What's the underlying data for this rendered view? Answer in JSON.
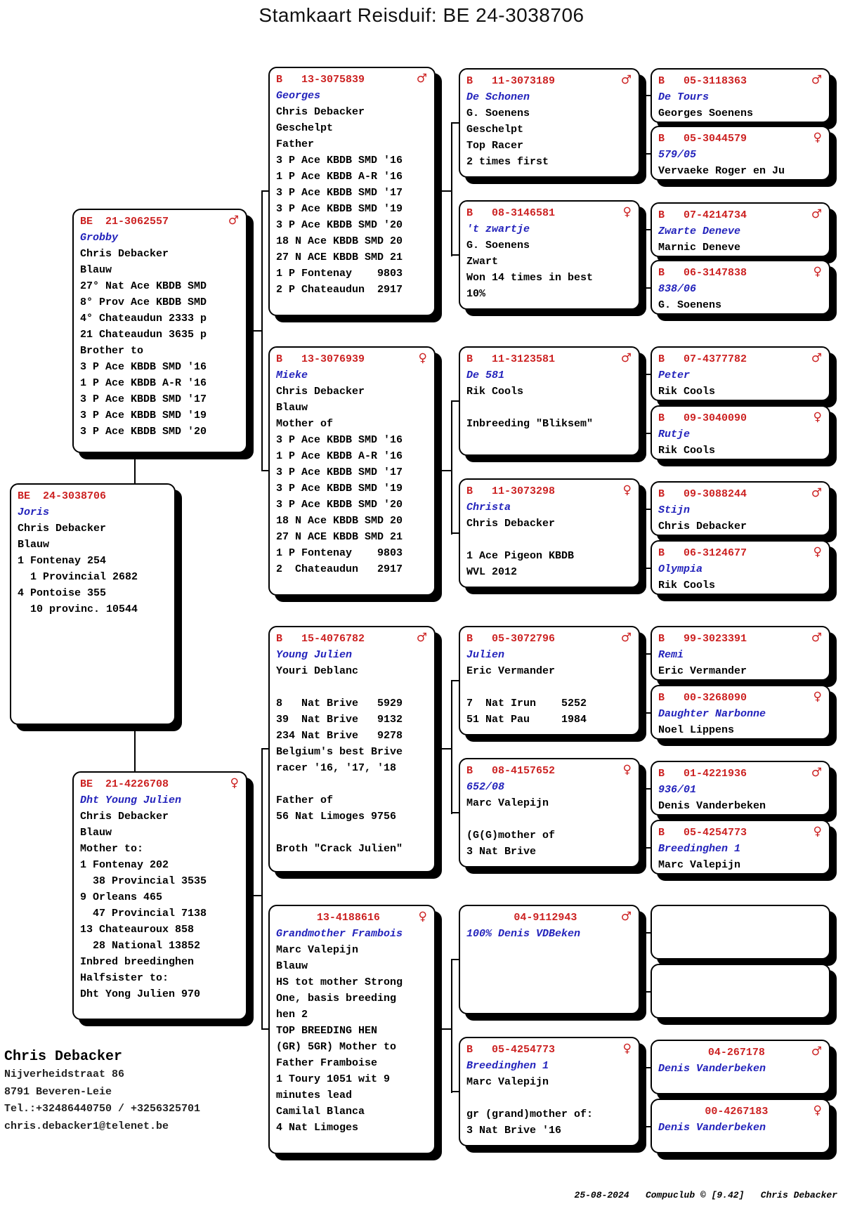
{
  "title": "Stamkaart Reisduif: BE  24-3038706",
  "colors": {
    "ring_red": "#cc2222",
    "name_blue": "#2222bb"
  },
  "owner": {
    "name": "Chris Debacker",
    "address1": "Nijverheidstraat 86",
    "address2": "8791  Beveren-Leie",
    "phone": "Tel.:+32486440750 / +3256325701",
    "email": "chris.debacker1@telenet.be"
  },
  "footer": "25-08-2024   Compuclub © [9.42]   Chris Debacker",
  "boxes": {
    "subject": {
      "ring": "BE  24-3038706",
      "sex": "",
      "name": "Joris",
      "fancier": "Chris Debacker",
      "lines": [
        "Blauw",
        "1 Fontenay 254",
        "  1 Provincial 2682",
        "4 Pontoise 355",
        "  10 provinc. 10544"
      ]
    },
    "grobby": {
      "ring": "BE  21-3062557",
      "sex": "♂",
      "name": "Grobby",
      "fancier": "Chris Debacker",
      "lines": [
        "Blauw",
        "27° Nat Ace KBDB SMD",
        "8° Prov Ace KBDB SMD",
        "4° Chateaudun 2333 p",
        "21 Chateaudun 3635 p",
        "Brother to",
        "3 P Ace KBDB SMD '16",
        "1 P Ace KBDB A-R '16",
        "3 P Ace KBDB SMD '17",
        "3 P Ace KBDB SMD '19",
        "3 P Ace KBDB SMD '20"
      ]
    },
    "dht_young_julien": {
      "ring": "BE  21-4226708",
      "sex": "♀",
      "name": "Dht Young Julien",
      "fancier": "Chris Debacker",
      "lines": [
        "Blauw",
        "Mother to:",
        "1 Fontenay 202",
        "  38 Provincial 3535",
        "9 Orleans 465",
        "  47 Provincial 7138",
        "13 Chateauroux 858",
        "  28 National 13852",
        "Inbred breedinghen",
        "Halfsister to:",
        "Dht Yong Julien 970"
      ]
    },
    "georges": {
      "ring": "B   13-3075839",
      "sex": "♂",
      "name": "Georges",
      "fancier": "Chris Debacker",
      "lines": [
        "Geschelpt",
        "Father",
        "3 P Ace KBDB SMD '16",
        "1 P Ace KBDB A-R '16",
        "3 P Ace KBDB SMD '17",
        "3 P Ace KBDB SMD '19",
        "3 P Ace KBDB SMD '20",
        "18 N Ace KBDB SMD 20",
        "27 N ACE KBDB SMD 21",
        "1 P Fontenay    9803",
        "2 P Chateaudun  2917"
      ]
    },
    "mieke": {
      "ring": "B   13-3076939",
      "sex": "♀",
      "name": "Mieke",
      "fancier": "Chris Debacker",
      "lines": [
        "Blauw",
        "Mother of",
        "3 P Ace KBDB SMD '16",
        "1 P Ace KBDB A-R '16",
        "3 P Ace KBDB SMD '17",
        "3 P Ace KBDB SMD '19",
        "3 P Ace KBDB SMD '20",
        "18 N Ace KBDB SMD 20",
        "27 N ACE KBDB SMD 21",
        "1 P Fontenay    9803",
        "2  Chateaudun   2917"
      ]
    },
    "young_julien": {
      "ring": "B   15-4076782",
      "sex": "♂",
      "name": "Young Julien",
      "fancier": "Youri Deblanc",
      "lines": [
        "",
        "8   Nat Brive   5929",
        "39  Nat Brive   9132",
        "234 Nat Brive   9278",
        "Belgium's best Brive",
        "racer '16, '17, '18",
        "",
        "Father of",
        "56 Nat Limoges 9756",
        "",
        "Broth \"Crack Julien\""
      ]
    },
    "frambois": {
      "ring": "13-4188616",
      "sex": "♀",
      "name": "Grandmother Frambois",
      "fancier": "Marc Valepijn",
      "lines": [
        "Blauw",
        "HS tot mother Strong",
        "One, basis breeding",
        "hen 2",
        "TOP BREEDING HEN",
        "(GR) 5GR) Mother to",
        "Father Framboise",
        "1 Toury 1051 wit 9",
        "minutes lead",
        "Camilal Blanca",
        "4 Nat Limoges"
      ]
    },
    "de_schonen": {
      "ring": "B   11-3073189",
      "sex": "♂",
      "name": "De Schonen",
      "fancier": "G. Soenens",
      "lines": [
        "Geschelpt",
        "Top Racer",
        "2 times first"
      ]
    },
    "zwartje": {
      "ring": "B   08-3146581",
      "sex": "♀",
      "name": "'t zwartje",
      "fancier": "G. Soenens",
      "lines": [
        "Zwart",
        "Won 14 times in best",
        "10%"
      ]
    },
    "de_581": {
      "ring": "B   11-3123581",
      "sex": "♂",
      "name": "De 581",
      "fancier": "Rik Cools",
      "lines": [
        "",
        "Inbreeding \"Bliksem\""
      ]
    },
    "christa": {
      "ring": "B   11-3073298",
      "sex": "♀",
      "name": "Christa",
      "fancier": "Chris Debacker",
      "lines": [
        "",
        "1 Ace Pigeon KBDB",
        "WVL 2012"
      ]
    },
    "julien": {
      "ring": "B   05-3072796",
      "sex": "♂",
      "name": "Julien",
      "fancier": "Eric Vermander",
      "lines": [
        "",
        "7  Nat Irun    5252",
        "51 Nat Pau     1984"
      ]
    },
    "hen_652": {
      "ring": "B   08-4157652",
      "sex": "♀",
      "name": "652/08",
      "fancier": "Marc Valepijn",
      "lines": [
        "",
        "(G(G)mother of",
        "3 Nat Brive"
      ]
    },
    "vdbeken_943": {
      "ring": "04-9112943",
      "sex": "♂",
      "name": "100% Denis VDBeken",
      "fancier": "",
      "lines": []
    },
    "breedinghen_c4": {
      "ring": "B   05-4254773",
      "sex": "♀",
      "name": "Breedinghen 1",
      "fancier": "Marc Valepijn",
      "lines": [
        "",
        "gr (grand)mother of:",
        "3 Nat Brive '16"
      ]
    },
    "de_tours": {
      "ring": "B   05-3118363",
      "sex": "♂",
      "name": "De Tours",
      "fancier": "Georges Soenens",
      "lines": []
    },
    "hen_579": {
      "ring": "B   05-3044579",
      "sex": "♀",
      "name": "579/05",
      "fancier": "Vervaeke Roger en Ju",
      "lines": []
    },
    "zwarte_deneve": {
      "ring": "B   07-4214734",
      "sex": "♂",
      "name": "Zwarte Deneve",
      "fancier": "Marnic Deneve",
      "lines": []
    },
    "hen_838": {
      "ring": "B   06-3147838",
      "sex": "♀",
      "name": "838/06",
      "fancier": "G. Soenens",
      "lines": []
    },
    "peter": {
      "ring": "B   07-4377782",
      "sex": "♂",
      "name": "Peter",
      "fancier": "Rik Cools",
      "lines": []
    },
    "rutje": {
      "ring": "B   09-3040090",
      "sex": "♀",
      "name": "Rutje",
      "fancier": "Rik Cools",
      "lines": []
    },
    "stijn": {
      "ring": "B   09-3088244",
      "sex": "♂",
      "name": "Stijn",
      "fancier": "Chris Debacker",
      "lines": []
    },
    "olympia": {
      "ring": "B   06-3124677",
      "sex": "♀",
      "name": "Olympia",
      "fancier": "Rik Cools",
      "lines": []
    },
    "remi": {
      "ring": "B   99-3023391",
      "sex": "♂",
      "name": "Remi",
      "fancier": "Eric Vermander",
      "lines": []
    },
    "daughter_narbonne": {
      "ring": "B   00-3268090",
      "sex": "♀",
      "name": "Daughter Narbonne",
      "fancier": "Noel Lippens",
      "lines": []
    },
    "hen_936": {
      "ring": "B   01-4221936",
      "sex": "♂",
      "name": "936/01",
      "fancier": "Denis Vanderbeken",
      "lines": []
    },
    "breedinghen_c5": {
      "ring": "B   05-4254773",
      "sex": "♀",
      "name": "Breedinghen 1",
      "fancier": "Marc Valepijn",
      "lines": []
    },
    "vanderbeken_178": {
      "ring": "04-267178",
      "sex": "♂",
      "name": "Denis Vanderbeken",
      "fancier": "",
      "lines": []
    },
    "vanderbeken_183": {
      "ring": "00-4267183",
      "sex": "♀",
      "name": "Denis Vanderbeken",
      "fancier": "",
      "lines": []
    }
  }
}
